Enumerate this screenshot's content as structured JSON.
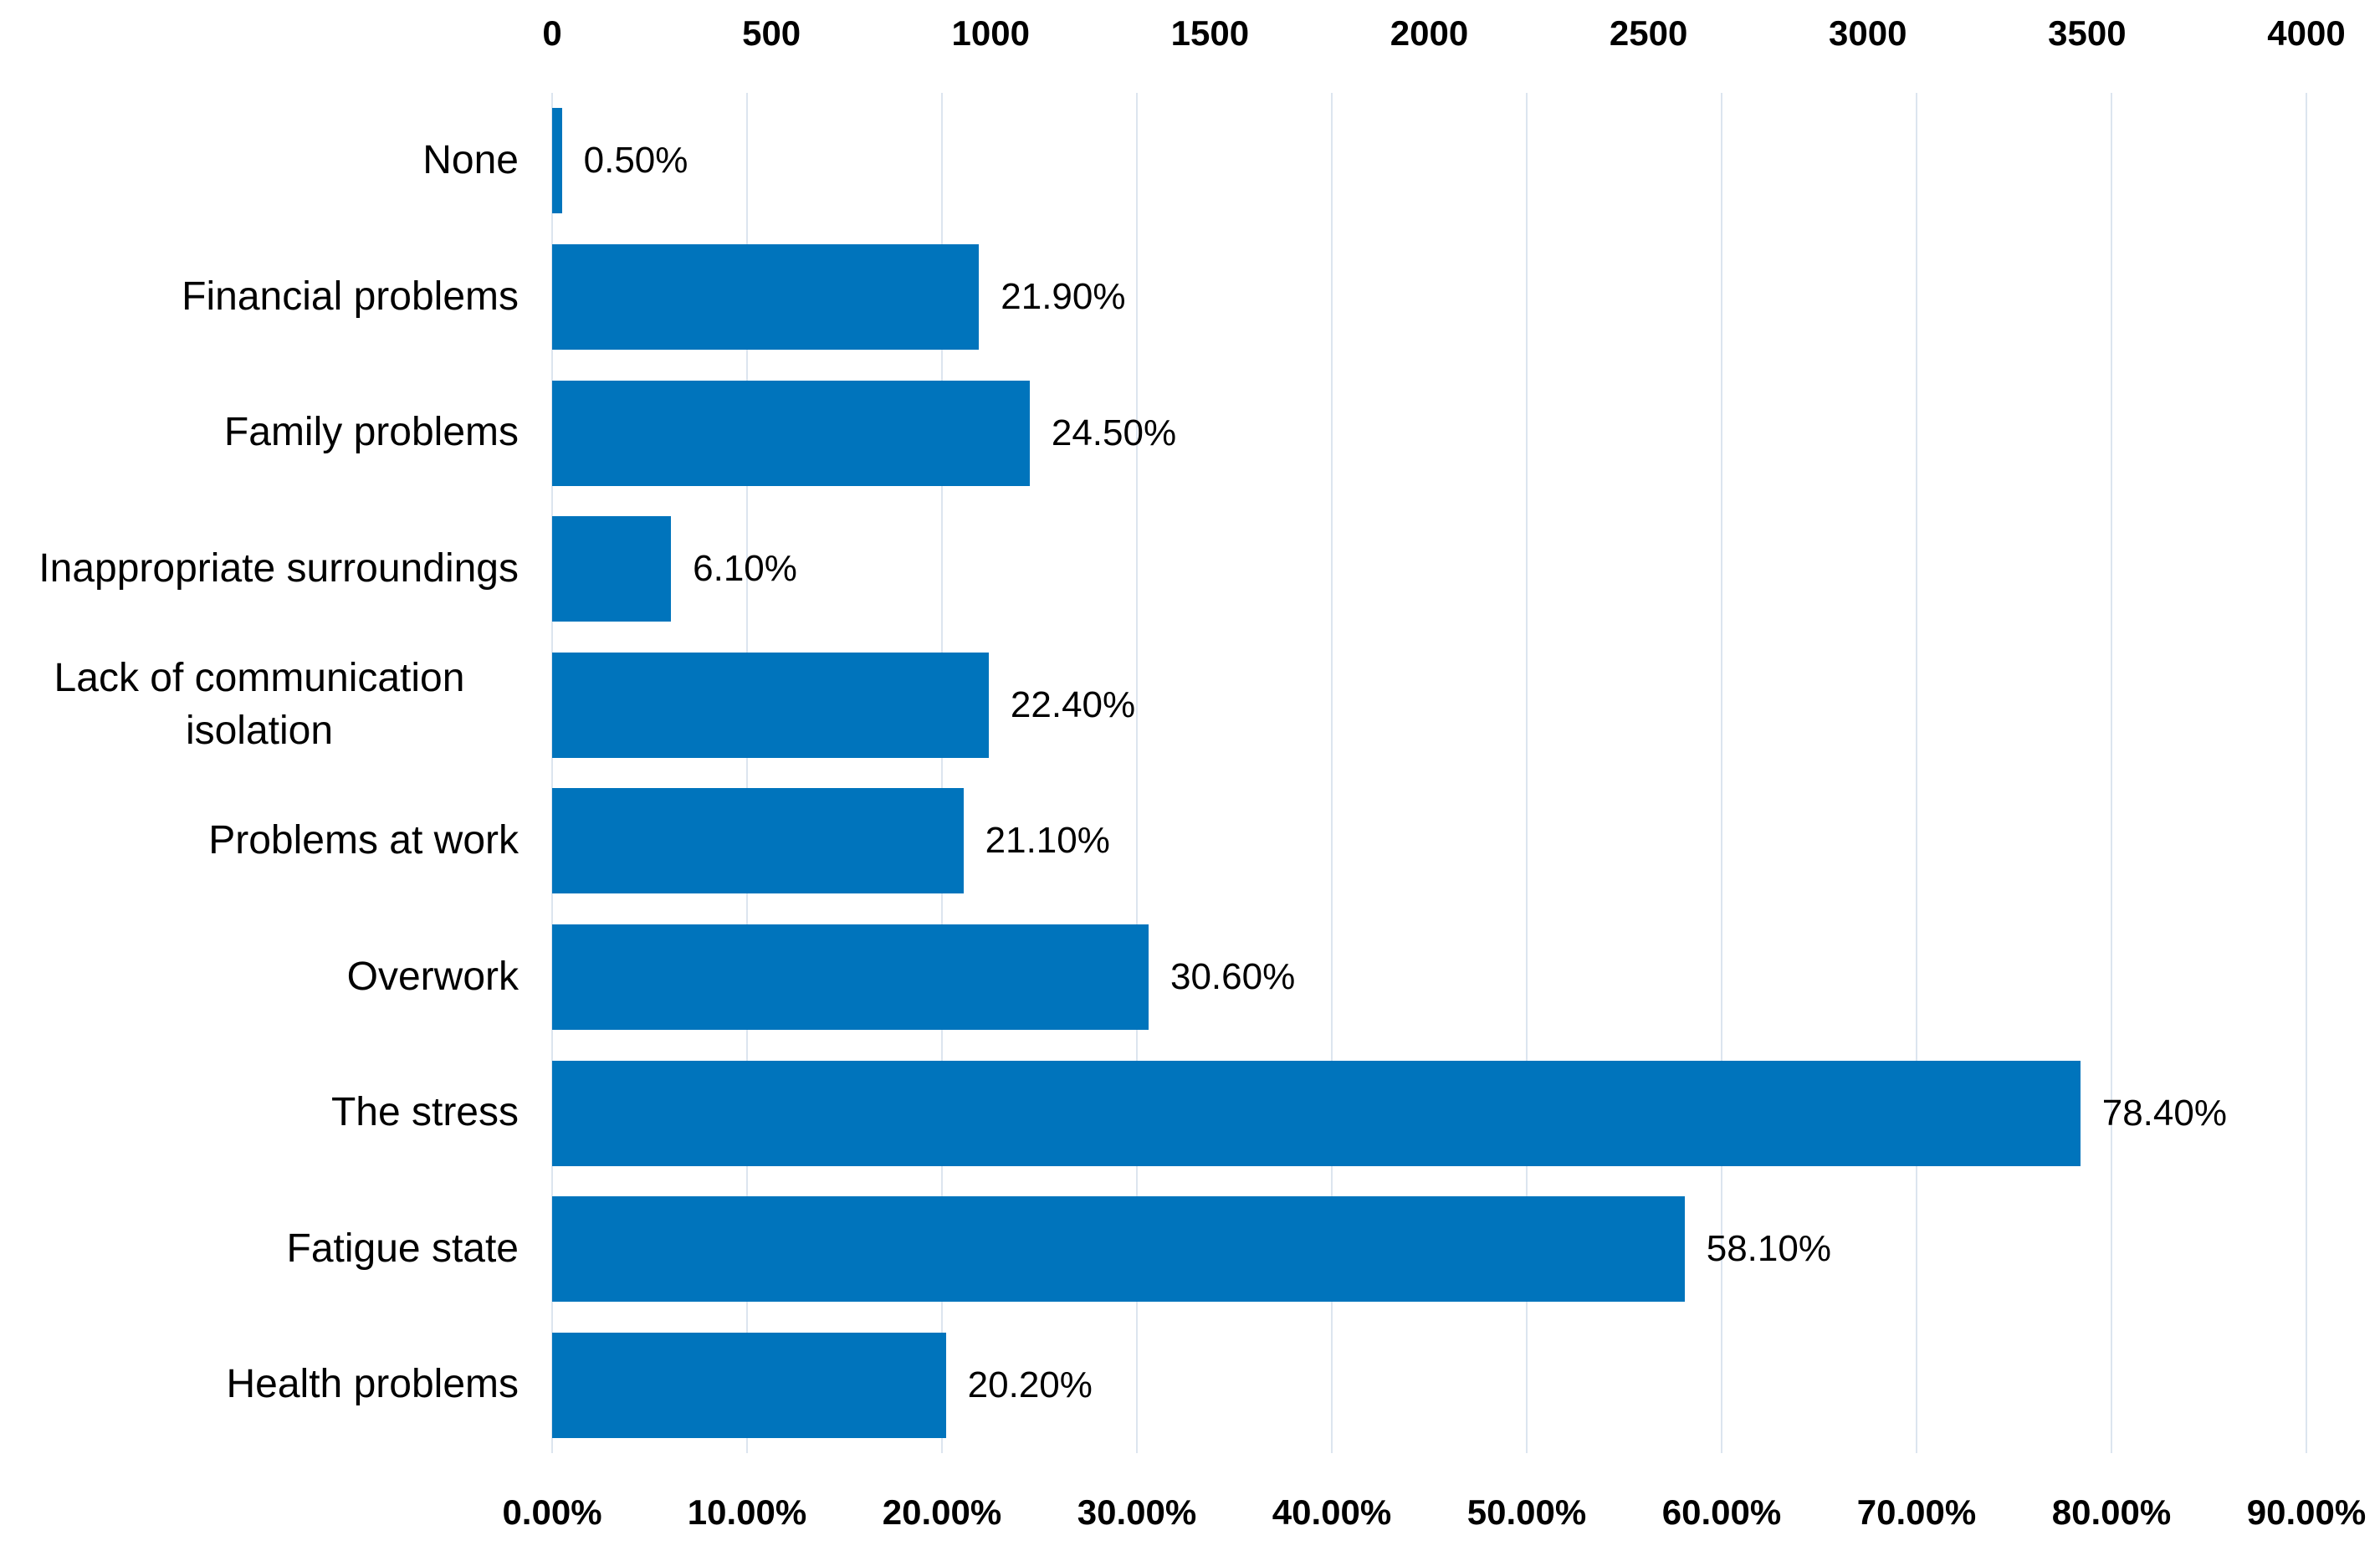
{
  "chart_data": {
    "type": "bar",
    "orientation": "horizontal",
    "title": "",
    "xlabel": "",
    "ylabel": "",
    "grid": true,
    "bar_color": "#0074bc",
    "gridline_color": "#dce5ef",
    "categories": [
      "None",
      "Financial problems",
      "Family problems",
      "Inappropriate surroundings",
      "Lack of communication isolation",
      "Problems at work",
      "Overwork",
      "The stress",
      "Fatigue state",
      "Health problems"
    ],
    "values": [
      0.5,
      21.9,
      24.5,
      6.1,
      22.4,
      21.1,
      30.6,
      78.4,
      58.1,
      20.2
    ],
    "data_labels": [
      "0.50%",
      "21.90%",
      "24.50%",
      "6.10%",
      "22.40%",
      "21.10%",
      "30.60%",
      "78.40%",
      "58.10%",
      "20.20%"
    ],
    "x_axis_bottom": {
      "min": 0,
      "max": 90,
      "ticks": [
        "0.00%",
        "10.00%",
        "20.00%",
        "30.00%",
        "40.00%",
        "50.00%",
        "60.00%",
        "70.00%",
        "80.00%",
        "90.00%"
      ]
    },
    "x_axis_top": {
      "min": 0,
      "max": 4000,
      "ticks": [
        "0",
        "500",
        "1000",
        "1500",
        "2000",
        "2500",
        "3000",
        "3500",
        "4000"
      ]
    }
  }
}
